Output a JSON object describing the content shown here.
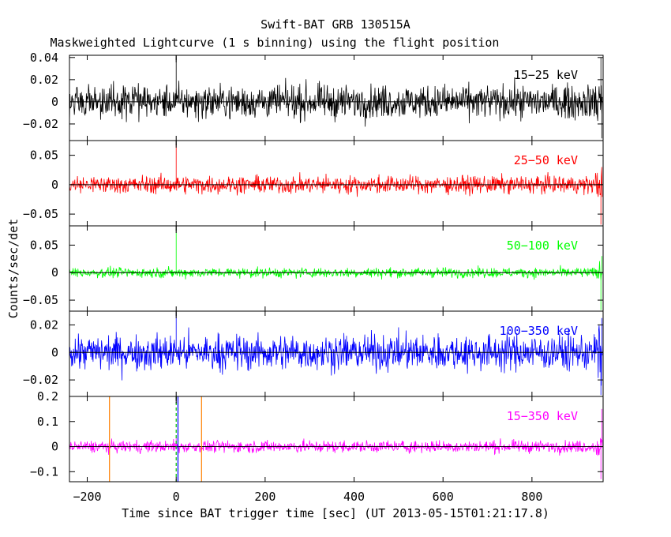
{
  "chart_data": {
    "type": "line",
    "title": "Swift-BAT GRB 130515A",
    "subtitle": "Maskweighted Lightcurve (1 s binning) using the flight position",
    "xlabel": "Time since BAT trigger time [sec] (UT 2013-05-15T01:21:17.8)",
    "ylabel": "Counts/sec/det",
    "xlim": [
      -240,
      960
    ],
    "xticks": [
      -200,
      0,
      200,
      400,
      600,
      800
    ],
    "trigger_time": 0,
    "panels": [
      {
        "band": "15-25 keV",
        "color": "#000000",
        "ylim": [
          -0.035,
          0.042
        ],
        "yticks": [
          0.04,
          0.02,
          0,
          -0.02
        ],
        "yticklabels": [
          "0.04",
          "0.02",
          "0",
          "−0.02"
        ],
        "noise_sigma": 0.0075,
        "spikes": [
          {
            "x": 0,
            "y": 0.04
          },
          {
            "x": 955,
            "y": 0.04
          },
          {
            "x": 957,
            "y": -0.033
          }
        ]
      },
      {
        "band": "25-50 keV",
        "color": "#ff0000",
        "ylim": [
          -0.07,
          0.075
        ],
        "yticks": [
          0.05,
          0,
          -0.05
        ],
        "yticklabels": [
          "0.05",
          "0",
          "−0.05"
        ],
        "noise_sigma": 0.0075,
        "spikes": [
          {
            "x": 0,
            "y": 0.07
          },
          {
            "x": 955,
            "y": -0.068
          },
          {
            "x": 957,
            "y": 0.03
          }
        ]
      },
      {
        "band": "50-100 keV",
        "color": "#00ff00",
        "ylim": [
          -0.07,
          0.085
        ],
        "yticks": [
          0.05,
          0,
          -0.05
        ],
        "yticklabels": [
          "0.05",
          "0",
          "−0.05"
        ],
        "noise_sigma": 0.0045,
        "spikes": [
          {
            "x": 0,
            "y": 0.08
          },
          {
            "x": 955,
            "y": -0.068
          },
          {
            "x": 957,
            "y": 0.03
          }
        ]
      },
      {
        "band": "100-350 keV",
        "color": "#0000ff",
        "ylim": [
          -0.032,
          0.03
        ],
        "yticks": [
          0.02,
          0,
          -0.02
        ],
        "yticklabels": [
          "0.02",
          "0",
          "−0.02"
        ],
        "noise_sigma": 0.0065,
        "spikes": [
          {
            "x": 0,
            "y": 0.029
          },
          {
            "x": 955,
            "y": -0.031
          },
          {
            "x": 957,
            "y": 0.025
          }
        ]
      },
      {
        "band": "15-350 keV",
        "color": "#ff00ff",
        "ylim": [
          -0.14,
          0.2
        ],
        "yticks": [
          0.2,
          0.1,
          0,
          -0.1
        ],
        "yticklabels": [
          "0.2",
          "0.1",
          "0",
          "−0.1"
        ],
        "noise_sigma": 0.012,
        "spikes": [
          {
            "x": 0,
            "y": 0.035
          },
          {
            "x": 955,
            "y": -0.13
          },
          {
            "x": 957,
            "y": 0.15
          }
        ],
        "markers": [
          {
            "x": -150,
            "color": "#ff8000",
            "style": "solid"
          },
          {
            "x": 57,
            "color": "#ff8000",
            "style": "solid"
          },
          {
            "x": 0,
            "color": "#00c000",
            "style": "dashed"
          },
          {
            "x": 4,
            "color": "#0000ff",
            "style": "solid"
          }
        ]
      }
    ],
    "grid": false,
    "legend": "none"
  }
}
